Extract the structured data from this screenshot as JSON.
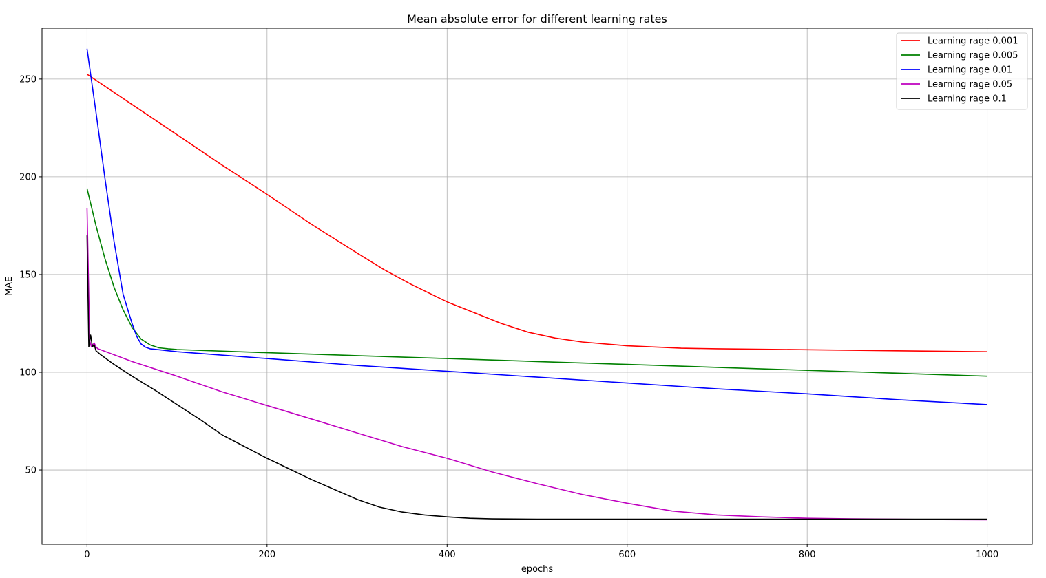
{
  "chart_data": {
    "type": "line",
    "title": "Mean absolute error for different learning rates",
    "xlabel": "epochs",
    "ylabel": "MAE",
    "xlim": [
      -50,
      1050
    ],
    "ylim": [
      12,
      276
    ],
    "xticks": [
      0,
      200,
      400,
      600,
      800,
      1000
    ],
    "yticks": [
      50,
      100,
      150,
      200,
      250
    ],
    "grid": true,
    "legend_position": "top-right",
    "series": [
      {
        "name": "Learning rage 0.001",
        "color": "#ff0000",
        "x": [
          0,
          50,
          100,
          150,
          200,
          250,
          300,
          330,
          360,
          400,
          430,
          460,
          490,
          520,
          550,
          600,
          660,
          700,
          800,
          900,
          1000
        ],
        "y": [
          252.5,
          237,
          221.5,
          206,
          191,
          175.5,
          161,
          152.5,
          145,
          136,
          130.5,
          125,
          120.5,
          117.5,
          115.5,
          113.5,
          112.3,
          112,
          111.5,
          111,
          110.5
        ]
      },
      {
        "name": "Learning rage 0.005",
        "color": "#008000",
        "x": [
          0,
          10,
          20,
          30,
          40,
          50,
          60,
          70,
          80,
          90,
          100,
          200,
          300,
          400,
          500,
          600,
          700,
          800,
          900,
          1000
        ],
        "y": [
          194,
          175,
          158,
          143.5,
          132,
          123,
          117,
          114,
          112.5,
          112,
          111.6,
          110,
          108.5,
          107,
          105.5,
          104,
          102.5,
          101,
          99.5,
          98
        ]
      },
      {
        "name": "Learning rage 0.01",
        "color": "#0000ff",
        "x": [
          0,
          10,
          20,
          30,
          40,
          50,
          55,
          60,
          65,
          70,
          80,
          100,
          200,
          300,
          400,
          500,
          600,
          700,
          800,
          900,
          1000
        ],
        "y": [
          265.5,
          233,
          199,
          167,
          140,
          125,
          118.5,
          114.5,
          112.8,
          112,
          111.5,
          110.5,
          107,
          103.5,
          100.5,
          97.5,
          94.5,
          91.5,
          89,
          86,
          83.5
        ]
      },
      {
        "name": "Learning rage 0.05",
        "color": "#bf00bf",
        "x": [
          0,
          3,
          5,
          8,
          10,
          12,
          15,
          50,
          100,
          150,
          200,
          250,
          300,
          350,
          400,
          450,
          500,
          550,
          600,
          650,
          700,
          750,
          800,
          850,
          900,
          950,
          1000
        ],
        "y": [
          184,
          116,
          113,
          115,
          113,
          112,
          111.5,
          105.5,
          98,
          90,
          83,
          76,
          69,
          62,
          56,
          49,
          43,
          37.5,
          33,
          29,
          27,
          26,
          25.3,
          25,
          24.8,
          24.6,
          24.5
        ]
      },
      {
        "name": "Learning rage 0.1",
        "color": "#000000",
        "x": [
          0,
          2,
          4,
          6,
          8,
          10,
          15,
          30,
          50,
          75,
          100,
          125,
          150,
          175,
          200,
          225,
          250,
          275,
          300,
          325,
          350,
          375,
          400,
          425,
          450,
          500,
          600,
          700,
          800,
          900,
          1000
        ],
        "y": [
          170,
          113,
          119,
          113,
          114,
          111,
          109,
          104,
          98,
          91,
          83.5,
          76,
          68,
          62,
          56,
          50.5,
          45,
          40,
          35,
          31,
          28.5,
          27,
          26,
          25.3,
          25,
          24.8,
          24.8,
          24.8,
          24.8,
          24.8,
          24.8
        ]
      }
    ]
  }
}
